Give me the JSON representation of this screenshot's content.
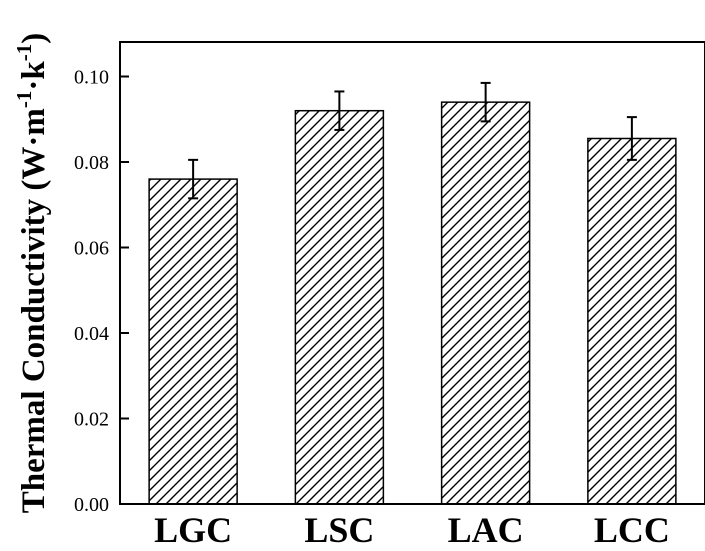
{
  "chart_data": {
    "type": "bar",
    "title": "",
    "xlabel": "",
    "ylabel": {
      "text": "Thermal Conductivity (W·m",
      "exp1": "-1",
      "mid": "·k",
      "exp2": "-1",
      "close": ")"
    },
    "categories": [
      "LGC",
      "LSC",
      "LAC",
      "LCC"
    ],
    "values": [
      0.076,
      0.092,
      0.094,
      0.0855
    ],
    "errors": [
      0.0045,
      0.0045,
      0.0045,
      0.005
    ],
    "ylim": [
      0,
      0.108
    ],
    "yticks": [
      0.0,
      0.02,
      0.04,
      0.06,
      0.08,
      0.1
    ],
    "ytick_labels": [
      "0.00",
      "0.02",
      "0.04",
      "0.06",
      "0.08",
      "0.10"
    ],
    "bar_fill": "hatched (diagonal lines)",
    "colors": {
      "bar_edge": "#000000",
      "hatch": "#000000",
      "background": "#ffffff"
    }
  }
}
